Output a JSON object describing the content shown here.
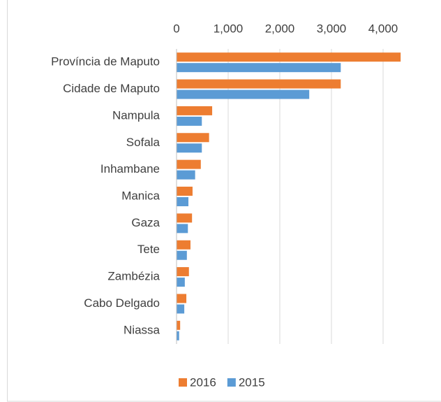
{
  "chart_data": {
    "type": "bar",
    "orientation": "horizontal",
    "categories": [
      "Província de Maputo",
      "Cidade de Maputo",
      "Nampula",
      "Sofala",
      "Inhambane",
      "Manica",
      "Gaza",
      "Tete",
      "Zambézia",
      "Cabo Delgado",
      "Niassa"
    ],
    "series": [
      {
        "name": "2016",
        "color": "#ed7d31",
        "values": [
          4340,
          3180,
          690,
          630,
          470,
          310,
          300,
          270,
          240,
          190,
          70
        ]
      },
      {
        "name": "2015",
        "color": "#5b9bd5",
        "values": [
          3180,
          2570,
          490,
          490,
          360,
          230,
          220,
          200,
          160,
          150,
          50
        ]
      }
    ],
    "xlim": [
      0,
      4500
    ],
    "xticks": [
      0,
      {
        "value": 1000,
        "label": "1,000"
      },
      {
        "value": 2000,
        "label": "2,000"
      },
      {
        "value": 3000,
        "label": "3,000"
      },
      {
        "value": 4000,
        "label": "4,000"
      }
    ],
    "grid": true,
    "legend": "bottom"
  }
}
